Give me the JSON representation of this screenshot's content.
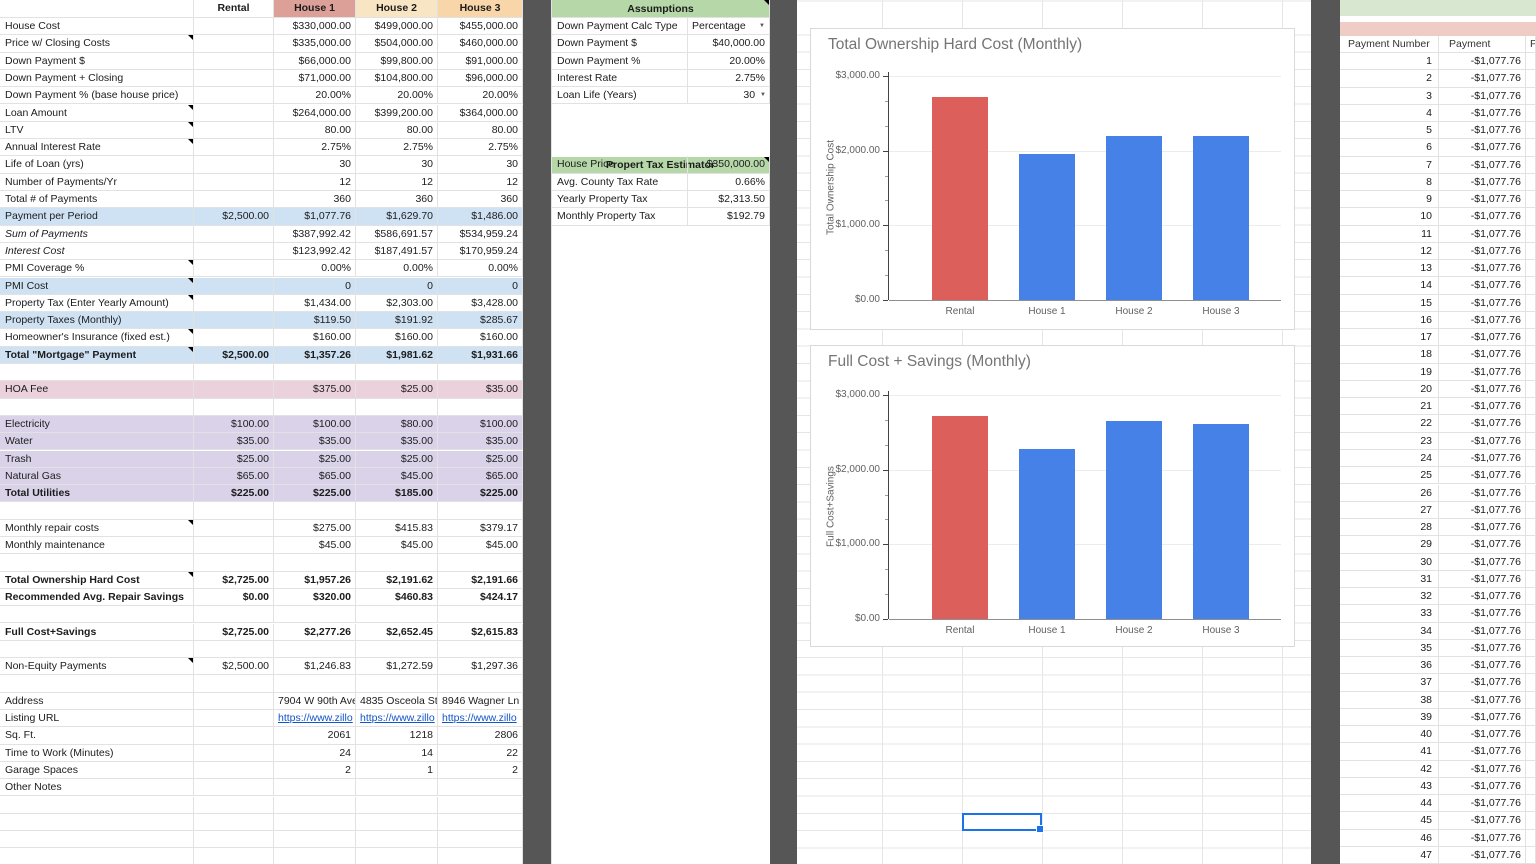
{
  "left_table": {
    "columns": [
      "",
      "Rental",
      "House 1",
      "House 2",
      "House 3"
    ],
    "rows": [
      {
        "l": "House Cost",
        "c": [
          "",
          "$330,000.00",
          "$499,000.00",
          "$455,000.00"
        ]
      },
      {
        "l": "Price w/ Closing Costs",
        "f": "note",
        "c": [
          "",
          "$335,000.00",
          "$504,000.00",
          "$460,000.00"
        ]
      },
      {
        "l": "Down Payment $",
        "c": [
          "",
          "$66,000.00",
          "$99,800.00",
          "$91,000.00"
        ]
      },
      {
        "l": "Down Payment + Closing",
        "c": [
          "",
          "$71,000.00",
          "$104,800.00",
          "$96,000.00"
        ]
      },
      {
        "l": "Down Payment % (base house price)",
        "c": [
          "",
          "20.00%",
          "20.00%",
          "20.00%"
        ]
      },
      {
        "l": "Loan Amount",
        "f": "note",
        "c": [
          "",
          "$264,000.00",
          "$399,200.00",
          "$364,000.00"
        ]
      },
      {
        "l": "LTV",
        "f": "note",
        "c": [
          "",
          "80.00",
          "80.00",
          "80.00"
        ]
      },
      {
        "l": "Annual Interest Rate",
        "f": "note",
        "c": [
          "",
          "2.75%",
          "2.75%",
          "2.75%"
        ]
      },
      {
        "l": "Life of Loan (yrs)",
        "c": [
          "",
          "30",
          "30",
          "30"
        ]
      },
      {
        "l": "Number of Payments/Yr",
        "c": [
          "",
          "12",
          "12",
          "12"
        ]
      },
      {
        "l": "Total # of Payments",
        "c": [
          "",
          "360",
          "360",
          "360"
        ]
      },
      {
        "l": "Payment per Period",
        "f": "blue",
        "c": [
          "$2,500.00",
          "$1,077.76",
          "$1,629.70",
          "$1,486.00"
        ]
      },
      {
        "l": "Sum of Payments",
        "f": "italic",
        "c": [
          "",
          "$387,992.42",
          "$586,691.57",
          "$534,959.24"
        ]
      },
      {
        "l": "Interest Cost",
        "f": "italic",
        "c": [
          "",
          "$123,992.42",
          "$187,491.57",
          "$170,959.24"
        ]
      },
      {
        "l": "PMI Coverage %",
        "f": "note",
        "c": [
          "",
          "0.00%",
          "0.00%",
          "0.00%"
        ]
      },
      {
        "l": "PMI Cost",
        "f": "note blue",
        "c": [
          "",
          "0",
          "0",
          "0"
        ]
      },
      {
        "l": "Property Tax (Enter Yearly Amount)",
        "f": "note",
        "c": [
          "",
          "$1,434.00",
          "$2,303.00",
          "$3,428.00"
        ]
      },
      {
        "l": "Property Taxes (Monthly)",
        "f": "blue",
        "c": [
          "",
          "$119.50",
          "$191.92",
          "$285.67"
        ]
      },
      {
        "l": "Homeowner's Insurance (fixed est.)",
        "f": "note",
        "c": [
          "",
          "$160.00",
          "$160.00",
          "$160.00"
        ]
      },
      {
        "l": "Total \"Mortgage\" Payment",
        "f": "note blue bold",
        "c": [
          "$2,500.00",
          "$1,357.26",
          "$1,981.62",
          "$1,931.66"
        ]
      },
      {},
      {
        "l": "HOA Fee",
        "f": "pink",
        "c": [
          "",
          "$375.00",
          "$25.00",
          "$35.00"
        ]
      },
      {},
      {
        "l": "Electricity",
        "f": "purple",
        "c": [
          "$100.00",
          "$100.00",
          "$80.00",
          "$100.00"
        ]
      },
      {
        "l": "Water",
        "f": "purple",
        "c": [
          "$35.00",
          "$35.00",
          "$35.00",
          "$35.00"
        ]
      },
      {
        "l": "Trash",
        "f": "purple",
        "c": [
          "$25.00",
          "$25.00",
          "$25.00",
          "$25.00"
        ]
      },
      {
        "l": "Natural Gas",
        "f": "purple",
        "c": [
          "$65.00",
          "$65.00",
          "$45.00",
          "$65.00"
        ]
      },
      {
        "l": "Total Utilities",
        "f": "purple bold",
        "c": [
          "$225.00",
          "$225.00",
          "$185.00",
          "$225.00"
        ]
      },
      {},
      {
        "l": "Monthly repair costs",
        "f": "note",
        "c": [
          "",
          "$275.00",
          "$415.83",
          "$379.17"
        ]
      },
      {
        "l": "Monthly maintenance",
        "c": [
          "",
          "$45.00",
          "$45.00",
          "$45.00"
        ]
      },
      {},
      {
        "l": "Total Ownership Hard Cost",
        "f": "note bold",
        "c": [
          "$2,725.00",
          "$1,957.26",
          "$2,191.62",
          "$2,191.66"
        ]
      },
      {
        "l": "Recommended Avg. Repair Savings",
        "f": "bold",
        "c": [
          "$0.00",
          "$320.00",
          "$460.83",
          "$424.17"
        ]
      },
      {},
      {
        "l": "Full Cost+Savings",
        "f": "bold",
        "c": [
          "$2,725.00",
          "$2,277.26",
          "$2,652.45",
          "$2,615.83"
        ]
      },
      {},
      {
        "l": "Non-Equity Payments",
        "f": "note",
        "c": [
          "$2,500.00",
          "$1,246.83",
          "$1,272.59",
          "$1,297.36"
        ]
      },
      {},
      {
        "l": "Address",
        "f": "left",
        "c": [
          "",
          "7904 W 90th Ave",
          "4835 Osceola St",
          "8946 Wagner Ln"
        ]
      },
      {
        "l": "Listing URL",
        "f": "link",
        "c": [
          "",
          "https://www.zillo",
          "https://www.zillo",
          "https://www.zillo"
        ]
      },
      {
        "l": "Sq. Ft.",
        "c": [
          "",
          "2061",
          "1218",
          "2806"
        ]
      },
      {
        "l": "Time to Work (Minutes)",
        "c": [
          "",
          "24",
          "14",
          "22"
        ]
      },
      {
        "l": "Garage Spaces",
        "c": [
          "",
          "2",
          "1",
          "2"
        ]
      },
      {
        "l": "Other Notes",
        "c": [
          "",
          "",
          "",
          ""
        ]
      }
    ]
  },
  "assumptions": {
    "title": "Assumptions",
    "rows": [
      {
        "label": "Down Payment Calc Type",
        "value": "Percentage",
        "dropdown": true,
        "align": "left"
      },
      {
        "label": "Down Payment $",
        "value": "$40,000.00"
      },
      {
        "label": "Down Payment %",
        "value": "20.00%"
      },
      {
        "label": "Interest Rate",
        "value": "2.75%"
      },
      {
        "label": "Loan Life (Years)",
        "value": "30",
        "dropdown": true,
        "align": "right"
      }
    ]
  },
  "property_tax": {
    "title": "Propert Tax Estimator",
    "rows": [
      {
        "label": "House Price",
        "value": "$350,000.00"
      },
      {
        "label": "Avg. County Tax Rate",
        "value": "0.66%"
      },
      {
        "label": "Yearly Property Tax",
        "value": "$2,313.50"
      },
      {
        "label": "Monthly Property Tax",
        "value": "$192.79"
      }
    ]
  },
  "chart_data": [
    {
      "type": "bar",
      "title": "Total Ownership Hard Cost (Monthly)",
      "ylabel": "Total Ownership Cost",
      "xlabel": "",
      "categories": [
        "Rental",
        "House 1",
        "House 2",
        "House 3"
      ],
      "values": [
        2725.0,
        1957.26,
        2191.62,
        2191.66
      ],
      "bar_colors": [
        "#dc5f5c",
        "#4581e6",
        "#4581e6",
        "#4581e6"
      ],
      "ylim": [
        0,
        3000
      ],
      "ytick_values": [
        0,
        1000,
        2000,
        3000
      ],
      "ytick_labels": [
        "$0.00",
        "$1,000.00",
        "$2,000.00",
        "$3,000.00"
      ],
      "grid": true,
      "legend": "none"
    },
    {
      "type": "bar",
      "title": "Full Cost + Savings (Monthly)",
      "ylabel": "Full Cost+Savings",
      "xlabel": "",
      "categories": [
        "Rental",
        "House 1",
        "House 2",
        "House 3"
      ],
      "values": [
        2725.0,
        2277.26,
        2652.45,
        2615.83
      ],
      "bar_colors": [
        "#dc5f5c",
        "#4581e6",
        "#4581e6",
        "#4581e6"
      ],
      "ylim": [
        0,
        3000
      ],
      "ytick_values": [
        0,
        1000,
        2000,
        3000
      ],
      "ytick_labels": [
        "$0.00",
        "$1,000.00",
        "$2,000.00",
        "$3,000.00"
      ],
      "grid": true,
      "legend": "none"
    }
  ],
  "payments": {
    "headers": [
      "Payment Number",
      "Payment",
      "P"
    ],
    "count": 47,
    "amount_each": "-$1,077.76"
  },
  "colors": {
    "house1_header": "#dda099",
    "house2_header": "#f8e5c4",
    "house3_header": "#f8d6a9",
    "green_header": "#b6d7a8",
    "blue_row": "#cfe2f3",
    "pink_row": "#ead1dc",
    "purple_row": "#d9d2e9",
    "right_green_band": "#d8e8d0",
    "right_pink_band": "#efccc5",
    "bar_red": "#dc5f5c",
    "bar_blue": "#4581e6",
    "selection_blue": "#1a73e8",
    "link_blue": "#1155cc",
    "divider_gray": "#565656",
    "gridline": "#e2e2e2"
  }
}
